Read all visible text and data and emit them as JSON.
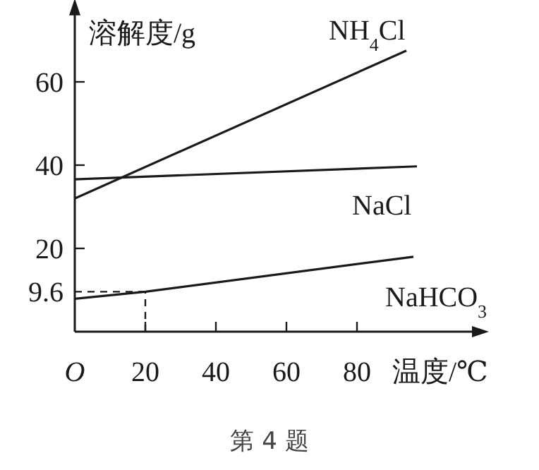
{
  "chart_data": {
    "type": "line",
    "ylabel": "溶解度/g",
    "xlabel": "温度/℃",
    "annotations": [
      "第 4 题"
    ],
    "xlim": [
      0,
      115
    ],
    "ylim": [
      0,
      78
    ],
    "xticks": [
      {
        "value": 0,
        "label": "O"
      },
      20,
      40,
      60,
      80
    ],
    "yticks": [
      9.6,
      20,
      40,
      60
    ],
    "ref_lines": [
      {
        "axis": "y",
        "value": 9.6,
        "line_style": "dashed"
      },
      {
        "axis": "x",
        "value": 20,
        "line_style": "dashed"
      }
    ],
    "series": [
      {
        "name": "NH$_{4}$Cl",
        "color": "#1a1a1a",
        "x": [
          0,
          94
        ],
        "values": [
          32,
          67.5
        ]
      },
      {
        "name": "NaCl",
        "color": "#1a1a1a",
        "x": [
          0,
          97
        ],
        "values": [
          36.6,
          39.7
        ]
      },
      {
        "name": "NaHCO$_{3}$",
        "color": "#1a1a1a",
        "x": [
          0,
          20,
          96
        ],
        "values": [
          7.9,
          9.6,
          18
        ]
      }
    ]
  }
}
